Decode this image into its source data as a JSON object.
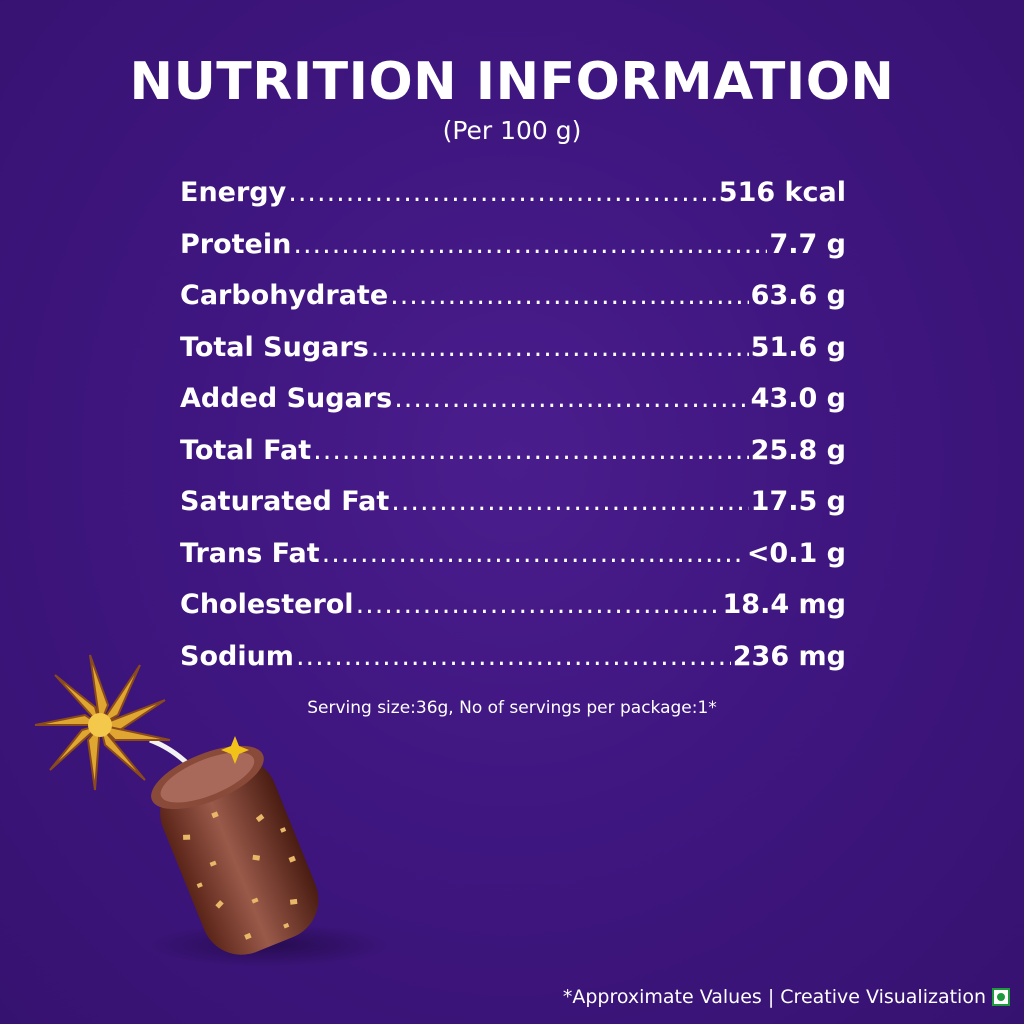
{
  "title": "NUTRITION INFORMATION",
  "subtitle": "(Per 100 g)",
  "nutrients": [
    {
      "name": "Energy",
      "value": "516 kcal"
    },
    {
      "name": "Protein",
      "value": "7.7 g"
    },
    {
      "name": "Carbohydrate",
      "value": "63.6 g"
    },
    {
      "name": "Total Sugars",
      "value": "51.6 g"
    },
    {
      "name": "Added Sugars",
      "value": "43.0 g"
    },
    {
      "name": "Total Fat",
      "value": "25.8 g"
    },
    {
      "name": "Saturated Fat",
      "value": "17.5 g"
    },
    {
      "name": "Trans Fat",
      "value": "<0.1 g"
    },
    {
      "name": "Cholesterol",
      "value": "18.4 mg"
    },
    {
      "name": "Sodium",
      "value": "236 mg"
    }
  ],
  "serving_note": "Serving size:36g, No of servings per package:1*",
  "footer": "*Approximate Values | Creative Visualization",
  "icons": {
    "veg_mark": "veg-symbol-icon",
    "illustration": "chocolate-firecracker-icon"
  },
  "colors": {
    "background": "#3f1680",
    "text": "#ffffff",
    "veg_green": "#1e9a3c"
  }
}
